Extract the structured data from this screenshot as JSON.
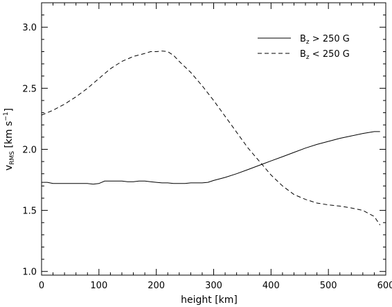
{
  "chart_data": {
    "type": "line",
    "xlabel": "height [km]",
    "ylabel": {
      "v": "v",
      "sub": "RMS",
      "unit_pre": " [km s",
      "unit_sup": "−1",
      "unit_post": "]"
    },
    "xlim": [
      0,
      600
    ],
    "ylim": [
      0.97,
      3.2
    ],
    "xticks": [
      "0",
      "100",
      "200",
      "300",
      "400",
      "500",
      "600"
    ],
    "xtick_values": [
      0,
      100,
      200,
      300,
      400,
      500,
      600
    ],
    "yticks": [
      "1.0",
      "1.5",
      "2.0",
      "2.5",
      "3.0"
    ],
    "ytick_values": [
      1.0,
      1.5,
      2.0,
      2.5,
      3.0
    ],
    "grid": false,
    "legend_position": "top-right",
    "series": [
      {
        "name": {
          "b": "B",
          "sub": "z",
          "rest": " > 250 G"
        },
        "style": "solid",
        "color": "#000000",
        "x": [
          0,
          10,
          20,
          30,
          40,
          50,
          60,
          70,
          80,
          90,
          100,
          110,
          120,
          130,
          140,
          150,
          160,
          170,
          180,
          190,
          200,
          210,
          220,
          230,
          240,
          250,
          260,
          270,
          280,
          290,
          300,
          320,
          340,
          360,
          380,
          400,
          420,
          440,
          460,
          480,
          500,
          520,
          540,
          560,
          580,
          590
        ],
        "y": [
          1.73,
          1.73,
          1.72,
          1.72,
          1.72,
          1.72,
          1.72,
          1.72,
          1.72,
          1.715,
          1.72,
          1.74,
          1.74,
          1.74,
          1.74,
          1.735,
          1.735,
          1.74,
          1.74,
          1.735,
          1.73,
          1.725,
          1.725,
          1.72,
          1.72,
          1.72,
          1.725,
          1.725,
          1.725,
          1.73,
          1.745,
          1.77,
          1.8,
          1.835,
          1.87,
          1.905,
          1.94,
          1.975,
          2.01,
          2.04,
          2.065,
          2.09,
          2.11,
          2.13,
          2.145,
          2.145
        ]
      },
      {
        "name": {
          "b": "B",
          "sub": "z",
          "rest": " < 250 G"
        },
        "style": "dashed",
        "color": "#000000",
        "x": [
          0,
          20,
          40,
          60,
          80,
          100,
          120,
          140,
          160,
          180,
          190,
          200,
          210,
          220,
          230,
          240,
          260,
          280,
          300,
          320,
          340,
          360,
          380,
          400,
          420,
          440,
          460,
          480,
          500,
          520,
          540,
          560,
          580,
          590
        ],
        "y": [
          2.28,
          2.32,
          2.37,
          2.43,
          2.5,
          2.58,
          2.66,
          2.72,
          2.76,
          2.785,
          2.8,
          2.8,
          2.805,
          2.8,
          2.77,
          2.72,
          2.63,
          2.52,
          2.4,
          2.27,
          2.14,
          2.01,
          1.9,
          1.79,
          1.7,
          1.63,
          1.59,
          1.56,
          1.545,
          1.535,
          1.52,
          1.5,
          1.45,
          1.38
        ]
      }
    ]
  }
}
